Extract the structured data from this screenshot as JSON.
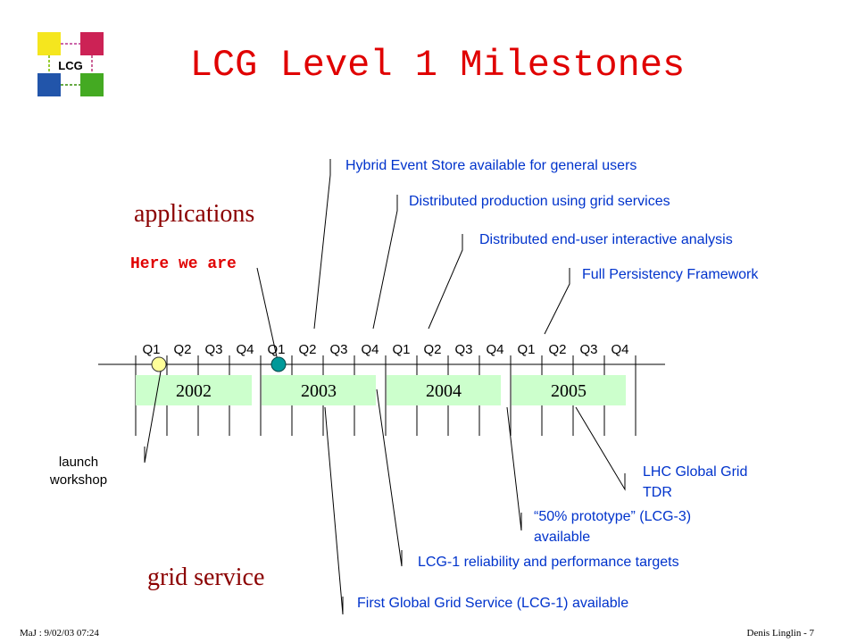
{
  "logo": {
    "text": "LCG",
    "colors": [
      "#f5e61e",
      "#cc2255",
      "#2255aa",
      "#44aa22"
    ]
  },
  "title": "LCG Level 1 Milestones",
  "sections": {
    "applications": "applications",
    "grid_service": "grid service"
  },
  "here_we_are": "Here we are",
  "quarters": [
    "Q1",
    "Q2",
    "Q3",
    "Q4",
    "Q1",
    "Q2",
    "Q3",
    "Q4",
    "Q1",
    "Q2",
    "Q3",
    "Q4",
    "Q1",
    "Q2",
    "Q3",
    "Q4"
  ],
  "years": [
    "2002",
    "2003",
    "2004",
    "2005"
  ],
  "milestones_applications": [
    "Hybrid Event Store available for general users",
    "Distributed production using grid services",
    "Distributed end-user interactive analysis",
    "Full Persistency Framework"
  ],
  "milestones_grid": {
    "launch_line1": "launch",
    "launch_line2": "workshop",
    "lhc_line1": "LHC Global Grid",
    "lhc_line2": "TDR",
    "proto_line1": "“50% prototype” (LCG-3)",
    "proto_line2": "available",
    "reliability": "LCG-1 reliability and performance targets",
    "first_service": "First Global Grid Service (LCG-1) available"
  },
  "footer": {
    "left": "MaJ : 9/02/03 07:24",
    "right": "Denis Linglin  -  7"
  },
  "colors": {
    "title": "#e00000",
    "heading": "#8b0000",
    "here_we_are": "#e00000",
    "milestone_text": "#0033cc",
    "year_box": "#ccffcc",
    "marker_yellow": "#ffff99",
    "marker_teal": "#009999"
  }
}
